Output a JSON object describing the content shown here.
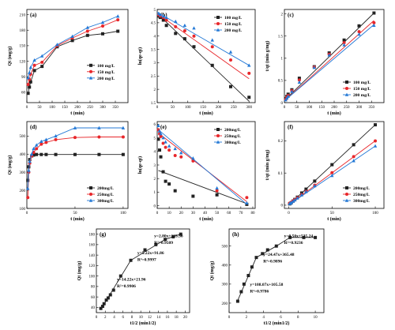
{
  "chart_data": [
    {
      "panel": "(a)",
      "type": "line",
      "xlabel": "t (min)",
      "ylabel": "Qt (mg/g)",
      "xlim": [
        0,
        400
      ],
      "ylim": [
        40,
        220
      ],
      "xticks": [
        0,
        50,
        100,
        150,
        200,
        250,
        300,
        350
      ],
      "yticks": [
        60,
        90,
        120,
        150,
        180,
        210
      ],
      "legend": "center-right",
      "series": [
        {
          "name": "100 mg/L",
          "color": "#222222",
          "marker": "square",
          "x": [
            5,
            10,
            15,
            30,
            60,
            120,
            180,
            240,
            300,
            360
          ],
          "y": [
            58,
            70,
            80,
            102,
            110,
            148,
            160,
            170,
            173,
            178
          ]
        },
        {
          "name": "150 mg/L",
          "color": "#e8262a",
          "marker": "circle",
          "x": [
            5,
            10,
            15,
            30,
            60,
            120,
            180,
            240,
            300,
            360
          ],
          "y": [
            75,
            85,
            95,
            112,
            118,
            150,
            165,
            178,
            188,
            200
          ]
        },
        {
          "name": "200 mg/L",
          "color": "#2479d6",
          "marker": "triangle",
          "x": [
            5,
            10,
            15,
            30,
            60,
            120,
            180,
            240,
            300,
            360
          ],
          "y": [
            88,
            98,
            108,
            122,
            130,
            152,
            168,
            185,
            195,
            207
          ]
        }
      ]
    },
    {
      "panel": "(b)",
      "type": "scatter",
      "xlabel": "t (min)",
      "ylabel": "ln(qe-qt)",
      "xlim": [
        0,
        320
      ],
      "ylim": [
        1.5,
        5.0
      ],
      "xticks": [
        0,
        50,
        100,
        150,
        200,
        250,
        300
      ],
      "yticks": [
        1.5,
        2.0,
        2.5,
        3.0,
        3.5,
        4.0,
        4.5,
        5.0
      ],
      "legend": "top-right",
      "series": [
        {
          "name": "100 mg/L",
          "color": "#222222",
          "marker": "square",
          "x": [
            5,
            10,
            20,
            30,
            60,
            90,
            120,
            180,
            240,
            300
          ],
          "y": [
            4.75,
            4.7,
            4.6,
            4.4,
            4.1,
            3.9,
            3.6,
            2.9,
            2.1,
            1.7
          ],
          "fit": [
            [
              0,
              4.85
            ],
            [
              300,
              1.55
            ]
          ]
        },
        {
          "name": "150 mg/L",
          "color": "#e8262a",
          "marker": "circle",
          "x": [
            5,
            10,
            20,
            30,
            60,
            90,
            120,
            180,
            240,
            300
          ],
          "y": [
            4.8,
            4.75,
            4.7,
            4.6,
            4.35,
            4.2,
            4.0,
            3.6,
            3.1,
            2.6
          ],
          "fit": [
            [
              0,
              4.85
            ],
            [
              300,
              2.4
            ]
          ]
        },
        {
          "name": "200 mg/L",
          "color": "#2479d6",
          "marker": "triangle",
          "x": [
            5,
            10,
            20,
            30,
            60,
            90,
            120,
            180,
            240,
            300
          ],
          "y": [
            4.85,
            4.8,
            4.75,
            4.7,
            4.55,
            4.4,
            4.3,
            3.85,
            3.4,
            2.9
          ],
          "fit": [
            [
              0,
              4.9
            ],
            [
              300,
              2.9
            ]
          ]
        }
      ]
    },
    {
      "panel": "(c)",
      "type": "scatter",
      "xlabel": "t (min)",
      "ylabel": "t/qt (min g/mg)",
      "xlim": [
        0,
        400
      ],
      "ylim": [
        0,
        2.1
      ],
      "xticks": [
        0,
        50,
        100,
        150,
        200,
        250,
        300,
        350
      ],
      "yticks": [
        0.0,
        0.5,
        1.0,
        1.5,
        2.0
      ],
      "legend": "bottom-right",
      "series": [
        {
          "name": "100 mg/L",
          "color": "#222222",
          "marker": "square",
          "x": [
            5,
            10,
            15,
            30,
            60,
            120,
            180,
            240,
            300,
            360
          ],
          "y": [
            0.09,
            0.14,
            0.19,
            0.29,
            0.55,
            0.81,
            1.12,
            1.41,
            1.73,
            2.02
          ],
          "fit": [
            [
              0,
              0.05
            ],
            [
              360,
              2.02
            ]
          ]
        },
        {
          "name": "150 mg/L",
          "color": "#e8262a",
          "marker": "circle",
          "x": [
            5,
            10,
            15,
            30,
            60,
            120,
            180,
            240,
            300,
            360
          ],
          "y": [
            0.07,
            0.12,
            0.16,
            0.27,
            0.51,
            0.8,
            1.09,
            1.35,
            1.6,
            1.8
          ],
          "fit": [
            [
              0,
              0.04
            ],
            [
              360,
              1.85
            ]
          ]
        },
        {
          "name": "200 mg/L",
          "color": "#2479d6",
          "marker": "triangle",
          "x": [
            5,
            10,
            15,
            30,
            60,
            120,
            180,
            240,
            300,
            360
          ],
          "y": [
            0.06,
            0.1,
            0.14,
            0.25,
            0.46,
            0.79,
            1.07,
            1.3,
            1.54,
            1.74
          ],
          "fit": [
            [
              0,
              0.04
            ],
            [
              360,
              1.76
            ]
          ]
        }
      ]
    },
    {
      "panel": "(d)",
      "type": "line",
      "xlabel": "t (min)",
      "ylabel": "Qt (mg/g)",
      "xlim": [
        0,
        105
      ],
      "ylim": [
        100,
        580
      ],
      "xticks": [
        0,
        50,
        100
      ],
      "yticks": [
        100,
        200,
        300,
        400,
        500
      ],
      "legend": "bottom-right",
      "series": [
        {
          "name": "200mg/L",
          "color": "#222222",
          "marker": "square",
          "x": [
            1,
            2,
            3,
            5,
            7,
            10,
            15,
            20,
            30,
            50,
            75,
            100
          ],
          "y": [
            255,
            330,
            370,
            390,
            395,
            398,
            398,
            398,
            398,
            398,
            398,
            398
          ]
        },
        {
          "name": "250mg/L",
          "color": "#e8262a",
          "marker": "circle",
          "x": [
            1,
            2,
            3,
            5,
            7,
            10,
            15,
            20,
            30,
            50,
            75,
            100
          ],
          "y": [
            160,
            300,
            350,
            390,
            410,
            430,
            455,
            465,
            480,
            492,
            495,
            495
          ]
        },
        {
          "name": "300mg/L",
          "color": "#2479d6",
          "marker": "triangle",
          "x": [
            1,
            2,
            3,
            5,
            7,
            10,
            15,
            20,
            30,
            50,
            75,
            100
          ],
          "y": [
            210,
            310,
            360,
            400,
            430,
            450,
            470,
            480,
            500,
            545,
            545,
            545
          ]
        }
      ]
    },
    {
      "panel": "(e)",
      "type": "scatter",
      "xlabel": "t (min)",
      "ylabel": "ln(qe-qt)",
      "xlim": [
        0,
        82
      ],
      "ylim": [
        -0.2,
        6.2
      ],
      "xticks": [
        0,
        10,
        20,
        30,
        40,
        50,
        60,
        70,
        80
      ],
      "yticks": [
        0,
        1,
        2,
        3,
        4,
        5,
        6
      ],
      "legend": "top-right",
      "series": [
        {
          "name": "200mg/L",
          "color": "#222222",
          "marker": "square",
          "x": [
            1,
            2,
            3,
            5,
            7,
            10,
            15,
            30,
            50,
            75
          ],
          "y": [
            4.9,
            4.1,
            3.6,
            2.5,
            1.8,
            1.6,
            1.1,
            0.7,
            0.8,
            0.1
          ],
          "fit": [
            [
              1,
              2.6
            ],
            [
              75,
              0.15
            ]
          ]
        },
        {
          "name": "250mg/L",
          "color": "#e8262a",
          "marker": "circle",
          "x": [
            1,
            2,
            3,
            5,
            7,
            10,
            15,
            20,
            30,
            50,
            75
          ],
          "y": [
            5.6,
            5.3,
            5.1,
            4.6,
            4.3,
            4.1,
            3.7,
            3.6,
            3.3,
            1.1,
            0.6
          ],
          "fit": [
            [
              1,
              5.35
            ],
            [
              75,
              0.3
            ]
          ]
        },
        {
          "name": "300mg/L",
          "color": "#2479d6",
          "marker": "triangle",
          "x": [
            1,
            2,
            3,
            5,
            7,
            10,
            15,
            20,
            30,
            50,
            75
          ],
          "y": [
            5.9,
            5.5,
            5.3,
            5.0,
            4.7,
            4.4,
            4.2,
            3.9,
            3.5,
            1.3,
            0.2
          ],
          "fit": [
            [
              1,
              5.6
            ],
            [
              75,
              0.1
            ]
          ]
        }
      ]
    },
    {
      "panel": "(f)",
      "type": "scatter",
      "xlabel": "t (min)",
      "ylabel": "t/qt (min g/mg)",
      "xlim": [
        -5,
        110
      ],
      "ylim": [
        -0.01,
        0.26
      ],
      "xticks": [
        0,
        50,
        100
      ],
      "yticks": [
        0.0,
        0.1,
        0.2
      ],
      "legend": "bottom-right",
      "series": [
        {
          "name": "200mg/L",
          "color": "#222222",
          "marker": "square",
          "x": [
            1,
            2,
            3,
            5,
            7,
            10,
            15,
            20,
            30,
            50,
            75,
            100
          ],
          "y": [
            0.004,
            0.006,
            0.008,
            0.013,
            0.018,
            0.025,
            0.038,
            0.05,
            0.075,
            0.126,
            0.188,
            0.25
          ],
          "fit": [
            [
              1,
              0.003
            ],
            [
              100,
              0.25
            ]
          ]
        },
        {
          "name": "250mg/L",
          "color": "#e8262a",
          "marker": "circle",
          "x": [
            1,
            2,
            3,
            5,
            7,
            10,
            15,
            20,
            30,
            50,
            75,
            100
          ],
          "y": [
            0.006,
            0.007,
            0.009,
            0.013,
            0.017,
            0.023,
            0.033,
            0.043,
            0.062,
            0.101,
            0.151,
            0.2
          ],
          "fit": [
            [
              1,
              0.003
            ],
            [
              100,
              0.2
            ]
          ]
        },
        {
          "name": "300mg/L",
          "color": "#2479d6",
          "marker": "triangle",
          "x": [
            1,
            2,
            3,
            5,
            7,
            10,
            15,
            20,
            30,
            50,
            75,
            100
          ],
          "y": [
            0.005,
            0.006,
            0.008,
            0.012,
            0.016,
            0.022,
            0.032,
            0.042,
            0.06,
            0.092,
            0.138,
            0.184
          ],
          "fit": [
            [
              1,
              0.003
            ],
            [
              100,
              0.184
            ]
          ]
        }
      ]
    },
    {
      "panel": "(g)",
      "type": "line",
      "xlabel": "t1/2 (min1/2)",
      "ylabel": "Qt (mg/g)",
      "xlim": [
        0,
        21
      ],
      "ylim": [
        30,
        190
      ],
      "xticks": [
        0,
        2,
        4,
        6,
        8,
        10,
        12,
        14,
        16,
        18,
        20
      ],
      "yticks": [
        40,
        60,
        80,
        100,
        120,
        140,
        160,
        180
      ],
      "legend": "none",
      "series": [
        {
          "name": "",
          "color": "#222222",
          "marker": "square",
          "x": [
            1,
            1.41,
            1.73,
            2.24,
            2.65,
            3.16,
            3.87,
            5.48,
            7.75,
            10.95,
            13.4,
            15.5,
            17.3,
            19.0
          ],
          "y": [
            38,
            42,
            47,
            54,
            58,
            64,
            73,
            100,
            130,
            150,
            160,
            170,
            175,
            180
          ],
          "fit": [
            [
              1,
              36
            ],
            [
              7.75,
              130
            ],
            [
              15.5,
              170
            ],
            [
              19.0,
              180
            ]
          ]
        }
      ],
      "annotations": [
        "y=2.80x+125.56",
        "R²=0.9509",
        "y=5.22x+91.86",
        "R²=0.9997",
        "y=14.22x+21.96",
        "R²=0.9906"
      ]
    },
    {
      "panel": "(h)",
      "type": "line",
      "xlabel": "t1/2 (min1/2)",
      "ylabel": "Qt (mg/g)",
      "xlim": [
        0,
        11
      ],
      "ylim": [
        150,
        590
      ],
      "xticks": [
        0,
        2,
        4,
        6,
        8,
        10
      ],
      "yticks": [
        200,
        300,
        400,
        500
      ],
      "legend": "none",
      "series": [
        {
          "name": "",
          "color": "#222222",
          "marker": "square",
          "x": [
            1,
            1.41,
            1.73,
            2.24,
            2.65,
            3.16,
            3.87,
            4.47,
            5.48,
            7.07,
            8.66,
            10.0
          ],
          "y": [
            210,
            260,
            300,
            345,
            390,
            440,
            460,
            480,
            500,
            545,
            545,
            545
          ],
          "fit": [
            [
              1,
              214
            ],
            [
              3.16,
              440
            ],
            [
              5.48,
              500
            ],
            [
              7.07,
              545
            ],
            [
              10.0,
              545
            ]
          ]
        }
      ],
      "annotations": [
        "y=0.50x+535.24",
        "R²=0.9236",
        "y=24.47x+365.48",
        "R²=0.9896",
        "y=108.07x+105.58",
        "R²=0.9786"
      ]
    }
  ]
}
